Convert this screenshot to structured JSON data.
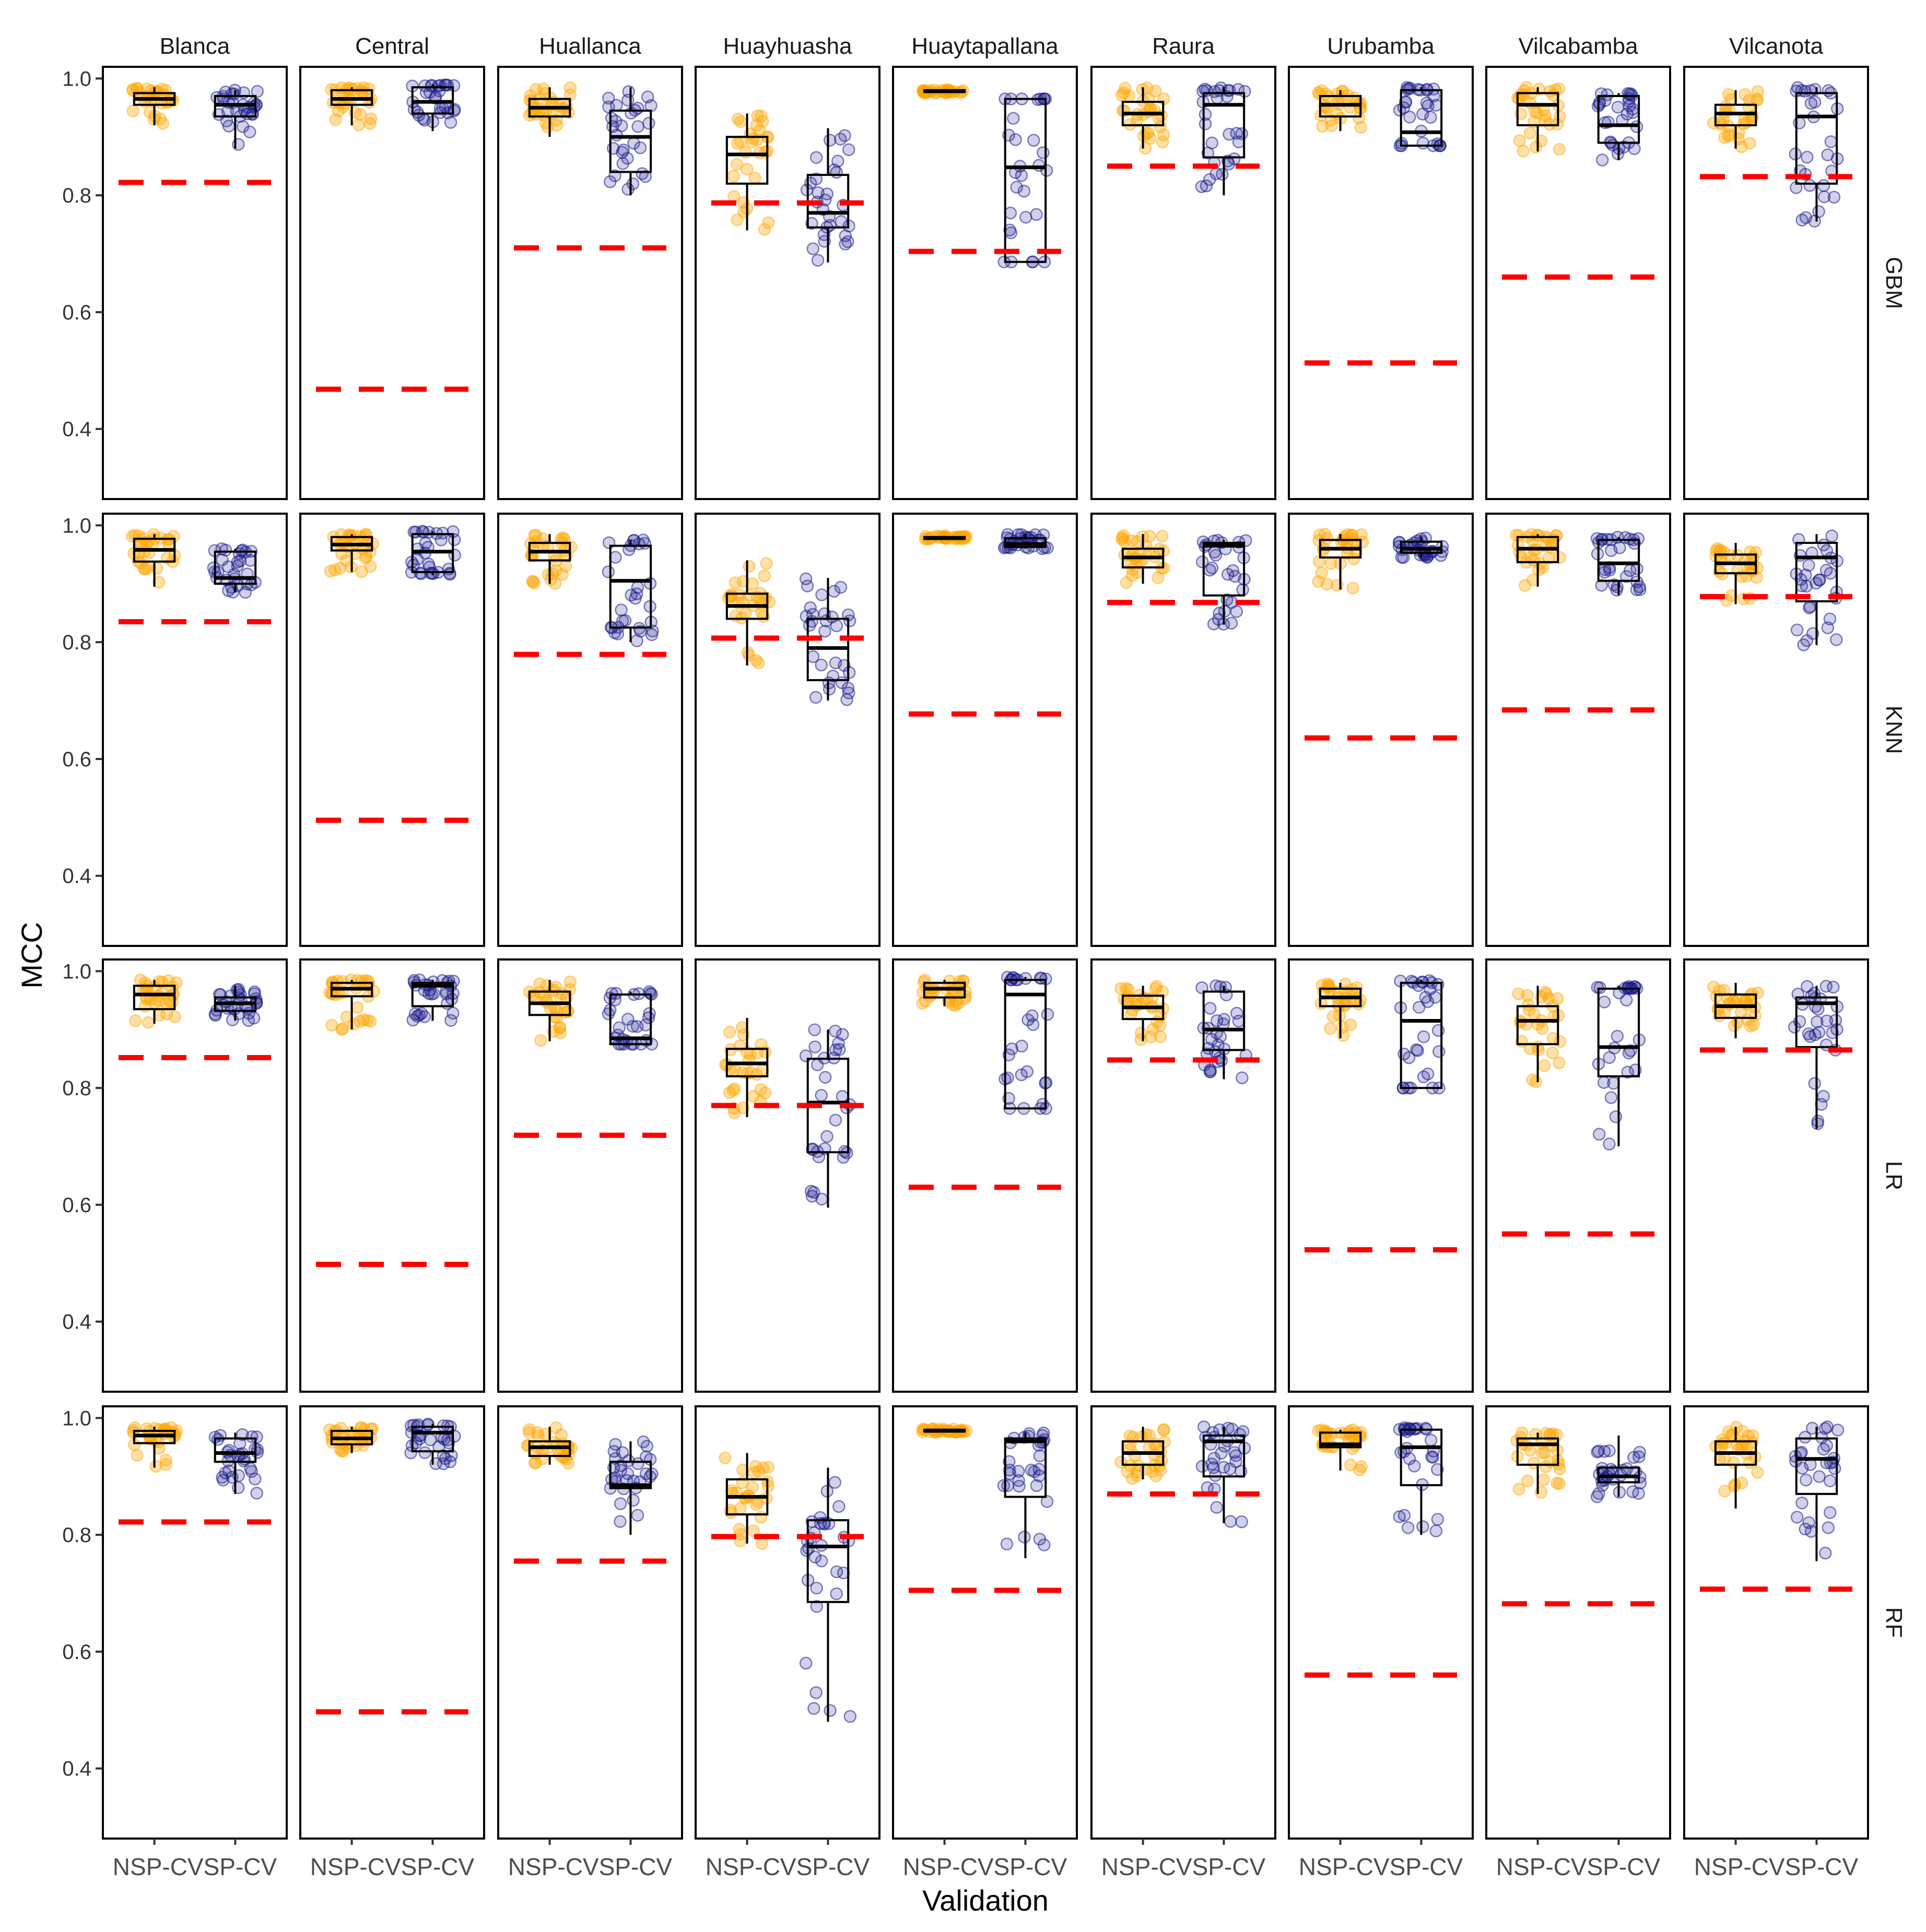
{
  "chart_data": {
    "type": "box",
    "xlabel": "Validation",
    "ylabel": "MCC",
    "categories": [
      "NSP-CV",
      "SP-CV"
    ],
    "columns": [
      "Blanca",
      "Central",
      "Huallanca",
      "Huayhuasha",
      "Huaytapallana",
      "Raura",
      "Urubamba",
      "Vilcabamba",
      "Vilcanota"
    ],
    "rows": [
      "GBM",
      "KNN",
      "LR",
      "RF"
    ],
    "ylim": [
      0.28,
      1.02
    ],
    "yticks": [
      0.4,
      0.6,
      0.8,
      1.0
    ],
    "ytick_labels": [
      "0.4",
      "0.6",
      "0.8",
      "1.0"
    ],
    "series_colors": {
      "NSP-CV": "#FFA500",
      "SP-CV": "#1A1A8C"
    },
    "reference_line_color": "#FF0000",
    "panels": {
      "GBM": [
        {
          "column": "Blanca",
          "ref": 0.822,
          "boxes": [
            {
              "q1": 0.955,
              "median": 0.965,
              "q3": 0.975,
              "lo": 0.92,
              "hi": 0.985
            },
            {
              "q1": 0.935,
              "median": 0.955,
              "q3": 0.97,
              "lo": 0.88,
              "hi": 0.98
            }
          ]
        },
        {
          "column": "Central",
          "ref": 0.468,
          "boxes": [
            {
              "q1": 0.955,
              "median": 0.965,
              "q3": 0.98,
              "lo": 0.92,
              "hi": 0.985
            },
            {
              "q1": 0.94,
              "median": 0.96,
              "q3": 0.985,
              "lo": 0.91,
              "hi": 0.99
            }
          ]
        },
        {
          "column": "Huallanca",
          "ref": 0.71,
          "boxes": [
            {
              "q1": 0.935,
              "median": 0.95,
              "q3": 0.965,
              "lo": 0.9,
              "hi": 0.985
            },
            {
              "q1": 0.84,
              "median": 0.9,
              "q3": 0.945,
              "lo": 0.8,
              "hi": 0.985
            }
          ]
        },
        {
          "column": "Huayhuasha",
          "ref": 0.787,
          "boxes": [
            {
              "q1": 0.82,
              "median": 0.87,
              "q3": 0.9,
              "lo": 0.74,
              "hi": 0.94
            },
            {
              "q1": 0.745,
              "median": 0.77,
              "q3": 0.835,
              "lo": 0.685,
              "hi": 0.915
            }
          ]
        },
        {
          "column": "Huaytapallana",
          "ref": 0.704,
          "boxes": [
            {
              "q1": 0.977,
              "median": 0.978,
              "q3": 0.98,
              "lo": 0.975,
              "hi": 0.982
            },
            {
              "q1": 0.686,
              "median": 0.848,
              "q3": 0.965,
              "lo": 0.686,
              "hi": 0.965
            }
          ]
        },
        {
          "column": "Raura",
          "ref": 0.85,
          "boxes": [
            {
              "q1": 0.92,
              "median": 0.94,
              "q3": 0.96,
              "lo": 0.88,
              "hi": 0.985
            },
            {
              "q1": 0.865,
              "median": 0.955,
              "q3": 0.975,
              "lo": 0.8,
              "hi": 0.985
            }
          ]
        },
        {
          "column": "Urubamba",
          "ref": 0.513,
          "boxes": [
            {
              "q1": 0.935,
              "median": 0.955,
              "q3": 0.97,
              "lo": 0.91,
              "hi": 0.98
            },
            {
              "q1": 0.885,
              "median": 0.908,
              "q3": 0.98,
              "lo": 0.885,
              "hi": 0.985
            }
          ]
        },
        {
          "column": "Vilcabamba",
          "ref": 0.66,
          "boxes": [
            {
              "q1": 0.92,
              "median": 0.955,
              "q3": 0.975,
              "lo": 0.875,
              "hi": 0.985
            },
            {
              "q1": 0.89,
              "median": 0.92,
              "q3": 0.97,
              "lo": 0.86,
              "hi": 0.975
            }
          ]
        },
        {
          "column": "Vilcanota",
          "ref": 0.832,
          "boxes": [
            {
              "q1": 0.92,
              "median": 0.94,
              "q3": 0.955,
              "lo": 0.88,
              "hi": 0.98
            },
            {
              "q1": 0.82,
              "median": 0.935,
              "q3": 0.975,
              "lo": 0.755,
              "hi": 0.985
            }
          ]
        }
      ],
      "KNN": [
        {
          "column": "Blanca",
          "ref": 0.835,
          "boxes": [
            {
              "q1": 0.938,
              "median": 0.958,
              "q3": 0.977,
              "lo": 0.895,
              "hi": 0.985
            },
            {
              "q1": 0.9,
              "median": 0.91,
              "q3": 0.955,
              "lo": 0.885,
              "hi": 0.96
            }
          ]
        },
        {
          "column": "Central",
          "ref": 0.495,
          "boxes": [
            {
              "q1": 0.957,
              "median": 0.967,
              "q3": 0.98,
              "lo": 0.92,
              "hi": 0.985
            },
            {
              "q1": 0.92,
              "median": 0.955,
              "q3": 0.985,
              "lo": 0.915,
              "hi": 0.99
            }
          ]
        },
        {
          "column": "Huallanca",
          "ref": 0.779,
          "boxes": [
            {
              "q1": 0.94,
              "median": 0.955,
              "q3": 0.97,
              "lo": 0.9,
              "hi": 0.985
            },
            {
              "q1": 0.825,
              "median": 0.905,
              "q3": 0.965,
              "lo": 0.8,
              "hi": 0.975
            }
          ]
        },
        {
          "column": "Huayhuasha",
          "ref": 0.807,
          "boxes": [
            {
              "q1": 0.84,
              "median": 0.862,
              "q3": 0.883,
              "lo": 0.76,
              "hi": 0.94
            },
            {
              "q1": 0.735,
              "median": 0.79,
              "q3": 0.84,
              "lo": 0.7,
              "hi": 0.91
            }
          ]
        },
        {
          "column": "Huaytapallana",
          "ref": 0.677,
          "boxes": [
            {
              "q1": 0.977,
              "median": 0.978,
              "q3": 0.98,
              "lo": 0.975,
              "hi": 0.982
            },
            {
              "q1": 0.963,
              "median": 0.968,
              "q3": 0.978,
              "lo": 0.96,
              "hi": 0.985
            }
          ]
        },
        {
          "column": "Raura",
          "ref": 0.868,
          "boxes": [
            {
              "q1": 0.928,
              "median": 0.945,
              "q3": 0.96,
              "lo": 0.9,
              "hi": 0.985
            },
            {
              "q1": 0.88,
              "median": 0.965,
              "q3": 0.97,
              "lo": 0.83,
              "hi": 0.975
            }
          ]
        },
        {
          "column": "Urubamba",
          "ref": 0.636,
          "boxes": [
            {
              "q1": 0.945,
              "median": 0.96,
              "q3": 0.975,
              "lo": 0.89,
              "hi": 0.985
            },
            {
              "q1": 0.953,
              "median": 0.96,
              "q3": 0.972,
              "lo": 0.945,
              "hi": 0.98
            }
          ]
        },
        {
          "column": "Vilcabamba",
          "ref": 0.684,
          "boxes": [
            {
              "q1": 0.937,
              "median": 0.96,
              "q3": 0.98,
              "lo": 0.895,
              "hi": 0.985
            },
            {
              "q1": 0.905,
              "median": 0.935,
              "q3": 0.975,
              "lo": 0.88,
              "hi": 0.98
            }
          ]
        },
        {
          "column": "Vilcanota",
          "ref": 0.878,
          "boxes": [
            {
              "q1": 0.918,
              "median": 0.935,
              "q3": 0.95,
              "lo": 0.865,
              "hi": 0.97
            },
            {
              "q1": 0.87,
              "median": 0.945,
              "q3": 0.97,
              "lo": 0.795,
              "hi": 0.985
            }
          ]
        }
      ],
      "LR": [
        {
          "column": "Blanca",
          "ref": 0.852,
          "boxes": [
            {
              "q1": 0.935,
              "median": 0.96,
              "q3": 0.975,
              "lo": 0.91,
              "hi": 0.985
            },
            {
              "q1": 0.932,
              "median": 0.945,
              "q3": 0.955,
              "lo": 0.915,
              "hi": 0.975
            }
          ]
        },
        {
          "column": "Central",
          "ref": 0.498,
          "boxes": [
            {
              "q1": 0.957,
              "median": 0.97,
              "q3": 0.98,
              "lo": 0.9,
              "hi": 0.985
            },
            {
              "q1": 0.94,
              "median": 0.975,
              "q3": 0.98,
              "lo": 0.915,
              "hi": 0.985
            }
          ]
        },
        {
          "column": "Huallanca",
          "ref": 0.719,
          "boxes": [
            {
              "q1": 0.925,
              "median": 0.945,
              "q3": 0.965,
              "lo": 0.88,
              "hi": 0.985
            },
            {
              "q1": 0.875,
              "median": 0.885,
              "q3": 0.96,
              "lo": 0.875,
              "hi": 0.965
            }
          ]
        },
        {
          "column": "Huayhuasha",
          "ref": 0.77,
          "boxes": [
            {
              "q1": 0.82,
              "median": 0.842,
              "q3": 0.867,
              "lo": 0.75,
              "hi": 0.92
            },
            {
              "q1": 0.69,
              "median": 0.775,
              "q3": 0.85,
              "lo": 0.595,
              "hi": 0.9
            }
          ]
        },
        {
          "column": "Huaytapallana",
          "ref": 0.63,
          "boxes": [
            {
              "q1": 0.955,
              "median": 0.97,
              "q3": 0.98,
              "lo": 0.94,
              "hi": 0.985
            },
            {
              "q1": 0.765,
              "median": 0.96,
              "q3": 0.985,
              "lo": 0.765,
              "hi": 0.99
            }
          ]
        },
        {
          "column": "Raura",
          "ref": 0.848,
          "boxes": [
            {
              "q1": 0.918,
              "median": 0.938,
              "q3": 0.958,
              "lo": 0.88,
              "hi": 0.975
            },
            {
              "q1": 0.865,
              "median": 0.9,
              "q3": 0.965,
              "lo": 0.815,
              "hi": 0.975
            }
          ]
        },
        {
          "column": "Urubamba",
          "ref": 0.523,
          "boxes": [
            {
              "q1": 0.94,
              "median": 0.955,
              "q3": 0.97,
              "lo": 0.885,
              "hi": 0.98
            },
            {
              "q1": 0.8,
              "median": 0.915,
              "q3": 0.98,
              "lo": 0.8,
              "hi": 0.985
            }
          ]
        },
        {
          "column": "Vilcabamba",
          "ref": 0.55,
          "boxes": [
            {
              "q1": 0.875,
              "median": 0.915,
              "q3": 0.94,
              "lo": 0.81,
              "hi": 0.975
            },
            {
              "q1": 0.82,
              "median": 0.87,
              "q3": 0.97,
              "lo": 0.7,
              "hi": 0.975
            }
          ]
        },
        {
          "column": "Vilcanota",
          "ref": 0.865,
          "boxes": [
            {
              "q1": 0.92,
              "median": 0.94,
              "q3": 0.96,
              "lo": 0.885,
              "hi": 0.98
            },
            {
              "q1": 0.87,
              "median": 0.945,
              "q3": 0.955,
              "lo": 0.73,
              "hi": 0.975
            }
          ]
        }
      ],
      "RF": [
        {
          "column": "Blanca",
          "ref": 0.822,
          "boxes": [
            {
              "q1": 0.957,
              "median": 0.97,
              "q3": 0.978,
              "lo": 0.915,
              "hi": 0.985
            },
            {
              "q1": 0.925,
              "median": 0.94,
              "q3": 0.965,
              "lo": 0.87,
              "hi": 0.975
            }
          ]
        },
        {
          "column": "Central",
          "ref": 0.497,
          "boxes": [
            {
              "q1": 0.955,
              "median": 0.965,
              "q3": 0.978,
              "lo": 0.94,
              "hi": 0.985
            },
            {
              "q1": 0.943,
              "median": 0.975,
              "q3": 0.985,
              "lo": 0.92,
              "hi": 0.99
            }
          ]
        },
        {
          "column": "Huallanca",
          "ref": 0.755,
          "boxes": [
            {
              "q1": 0.935,
              "median": 0.95,
              "q3": 0.96,
              "lo": 0.92,
              "hi": 0.985
            },
            {
              "q1": 0.88,
              "median": 0.885,
              "q3": 0.925,
              "lo": 0.8,
              "hi": 0.96
            }
          ]
        },
        {
          "column": "Huayhuasha",
          "ref": 0.797,
          "boxes": [
            {
              "q1": 0.835,
              "median": 0.865,
              "q3": 0.895,
              "lo": 0.785,
              "hi": 0.94
            },
            {
              "q1": 0.685,
              "median": 0.78,
              "q3": 0.825,
              "lo": 0.48,
              "hi": 0.915
            }
          ]
        },
        {
          "column": "Huaytapallana",
          "ref": 0.705,
          "boxes": [
            {
              "q1": 0.977,
              "median": 0.978,
              "q3": 0.98,
              "lo": 0.975,
              "hi": 0.982
            },
            {
              "q1": 0.865,
              "median": 0.96,
              "q3": 0.965,
              "lo": 0.76,
              "hi": 0.975
            }
          ]
        },
        {
          "column": "Raura",
          "ref": 0.87,
          "boxes": [
            {
              "q1": 0.92,
              "median": 0.94,
              "q3": 0.96,
              "lo": 0.895,
              "hi": 0.985
            },
            {
              "q1": 0.9,
              "median": 0.96,
              "q3": 0.97,
              "lo": 0.82,
              "hi": 0.985
            }
          ]
        },
        {
          "column": "Urubamba",
          "ref": 0.56,
          "boxes": [
            {
              "q1": 0.95,
              "median": 0.955,
              "q3": 0.975,
              "lo": 0.91,
              "hi": 0.98
            },
            {
              "q1": 0.885,
              "median": 0.95,
              "q3": 0.98,
              "lo": 0.8,
              "hi": 0.985
            }
          ]
        },
        {
          "column": "Vilcabamba",
          "ref": 0.682,
          "boxes": [
            {
              "q1": 0.92,
              "median": 0.955,
              "q3": 0.965,
              "lo": 0.87,
              "hi": 0.975
            },
            {
              "q1": 0.89,
              "median": 0.9,
              "q3": 0.915,
              "lo": 0.865,
              "hi": 0.97
            }
          ]
        },
        {
          "column": "Vilcanota",
          "ref": 0.707,
          "boxes": [
            {
              "q1": 0.92,
              "median": 0.94,
              "q3": 0.96,
              "lo": 0.845,
              "hi": 0.985
            },
            {
              "q1": 0.87,
              "median": 0.93,
              "q3": 0.965,
              "lo": 0.755,
              "hi": 0.985
            }
          ]
        }
      ]
    }
  }
}
